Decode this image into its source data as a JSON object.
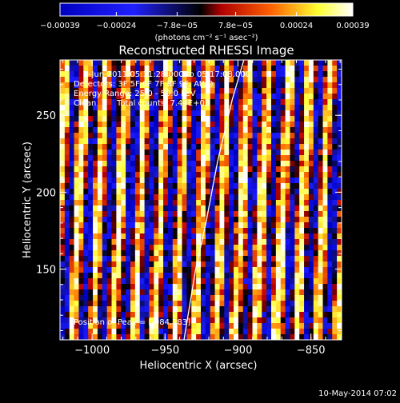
{
  "chart_data": {
    "type": "heatmap",
    "title": "Reconstructed RHESSI Image",
    "xlabel": "Heliocentric X (arcsec)",
    "ylabel": "Heliocentric Y (arcsec)",
    "xlim": [
      -1022,
      -829
    ],
    "ylim": [
      104,
      286
    ],
    "xticks": [
      {
        "value": -1000,
        "label": "−1000"
      },
      {
        "value": -950,
        "label": "−950"
      },
      {
        "value": -900,
        "label": "−900"
      },
      {
        "value": -850,
        "label": "−850"
      }
    ],
    "yticks": [
      {
        "value": 150,
        "label": "150"
      },
      {
        "value": 200,
        "label": "200"
      },
      {
        "value": 250,
        "label": "250"
      }
    ],
    "colorbar": {
      "range": [
        -0.00039,
        0.00039
      ],
      "ticks": [
        {
          "value": -0.00039,
          "label": "−0.00039"
        },
        {
          "value": -0.00024,
          "label": "−0.00024"
        },
        {
          "value": -7.8e-05,
          "label": "−7.8e−05"
        },
        {
          "value": 7.8e-05,
          "label": "7.8e−05"
        },
        {
          "value": 0.00024,
          "label": "0.00024"
        },
        {
          "value": 0.00039,
          "label": "0.00039"
        }
      ],
      "unit_label": "(photons cm⁻² s⁻¹ asec⁻²)",
      "colormap": [
        "#0000c0",
        "#1a1aff",
        "#000000",
        "#c00000",
        "#ff7000",
        "#ffff40",
        "#ffffff"
      ]
    },
    "grid": false,
    "limb_line": [
      {
        "x": -937,
        "y": 104
      },
      {
        "x": -929,
        "y": 150
      },
      {
        "x": -922,
        "y": 180
      },
      {
        "x": -914,
        "y": 220
      },
      {
        "x": -904,
        "y": 260
      },
      {
        "x": -896,
        "y": 286
      }
    ],
    "annotations": {
      "time_range": "1-Jun-2011 05:11:28.000 to 05:17:08.000",
      "detectors": "Detectors: 3F 5F 6F 7F 8F 9F, Att 0",
      "energy_range": "Energy Range: 25.0 - 50.0 keV",
      "method": "Clean",
      "total_counts": "Total counts: 7.44E+03",
      "peak": "Position of Peak = [-984,283]"
    }
  },
  "footer": {
    "timestamp": "10-May-2014 07:02"
  }
}
